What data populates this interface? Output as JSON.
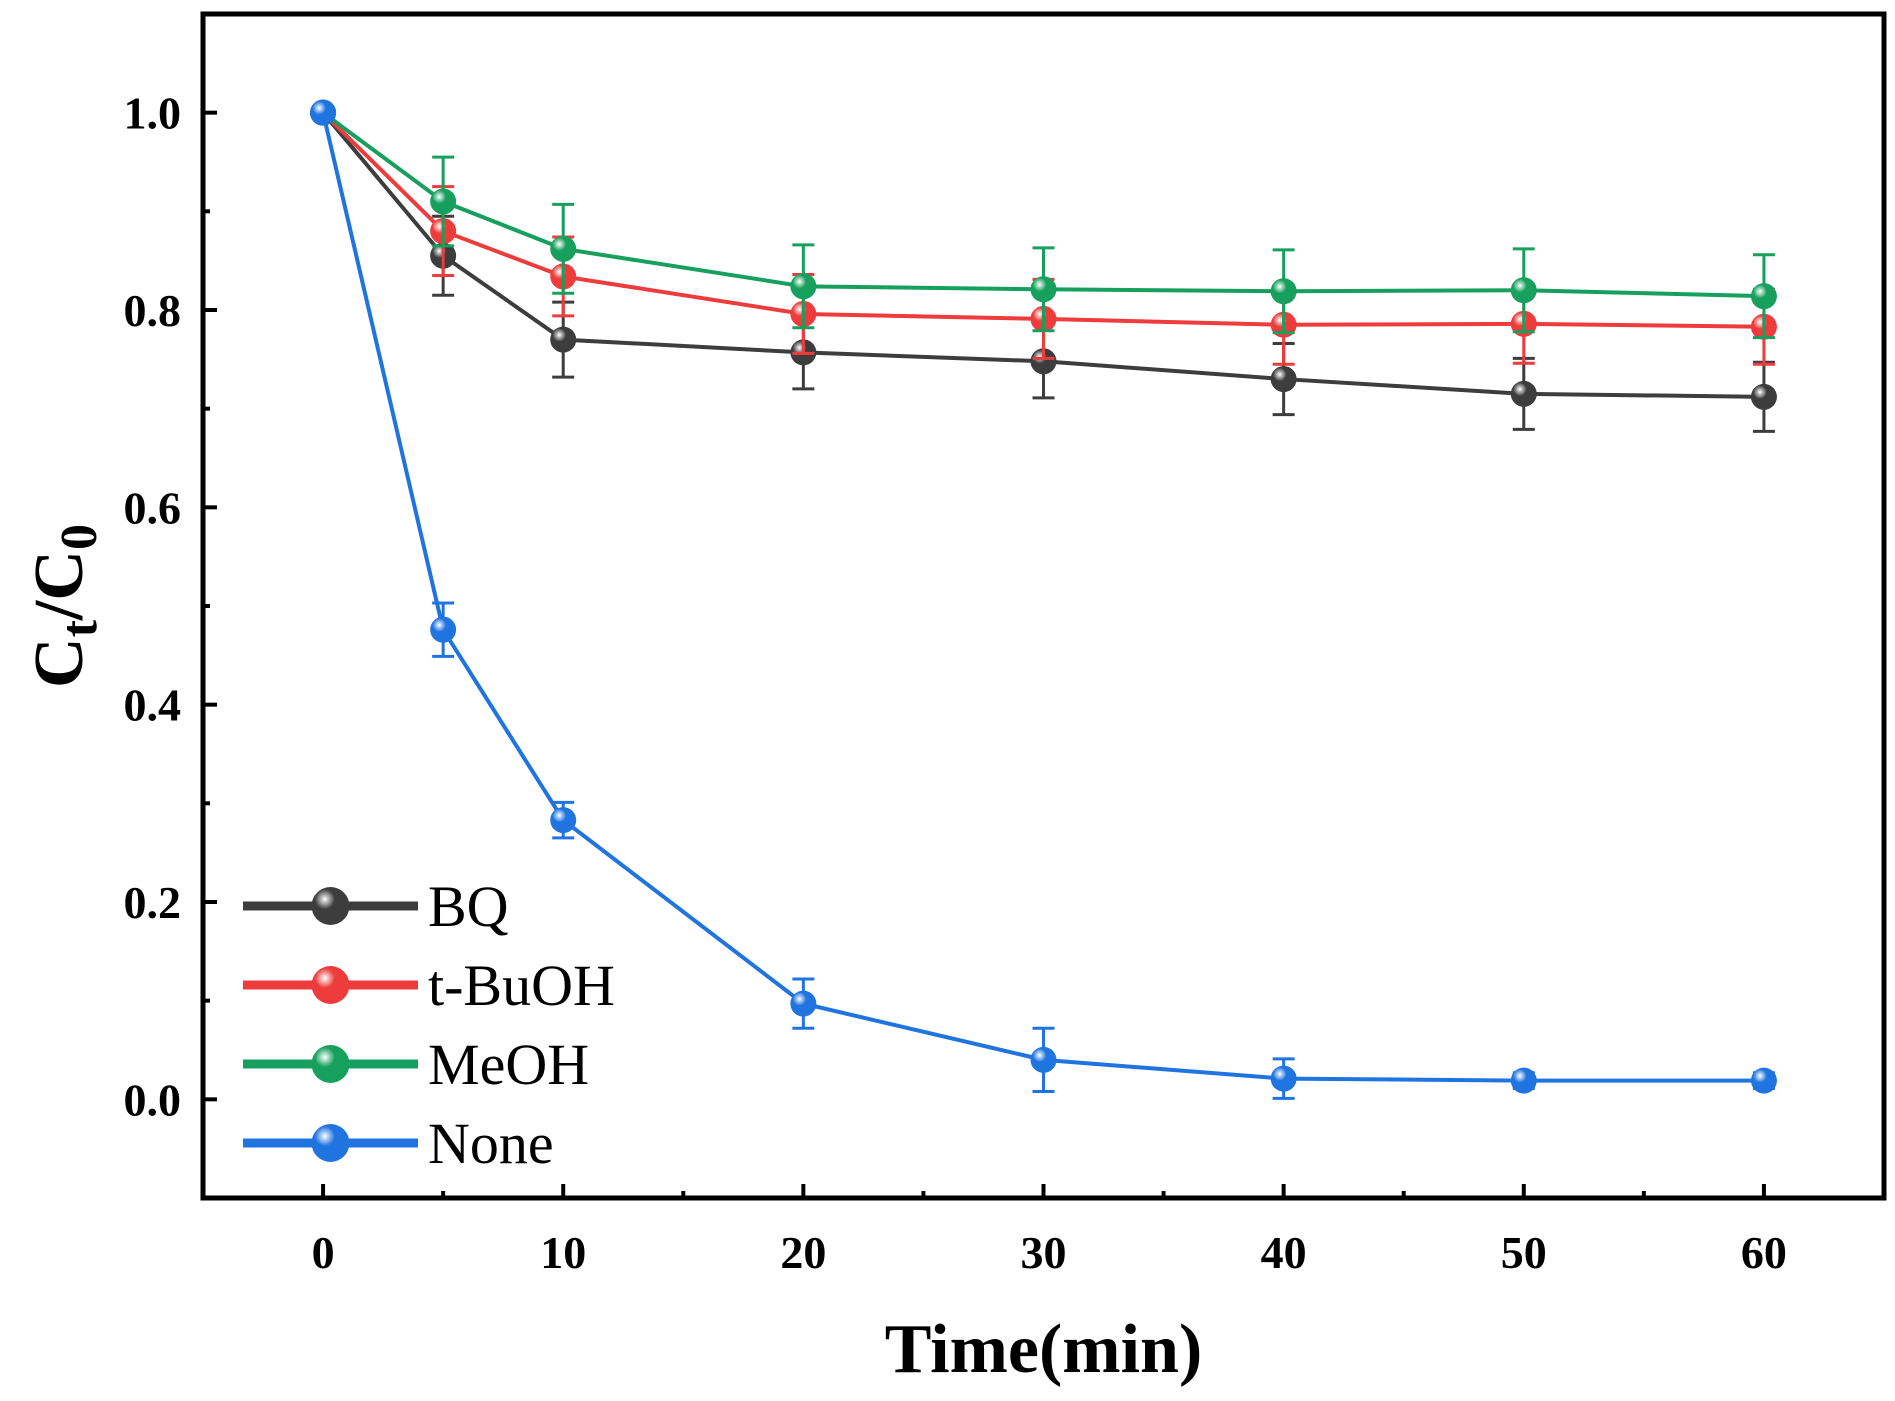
{
  "chart_data": {
    "type": "line",
    "title": "",
    "xlabel": "Time(min)",
    "ylabel": {
      "base": "C",
      "sub1": "t",
      "sep": "/",
      "base2": "C",
      "sub2": "0"
    },
    "xlim": [
      -5,
      65
    ],
    "ylim": [
      -0.1,
      1.1
    ],
    "xticks": [
      0,
      10,
      20,
      30,
      40,
      50,
      60
    ],
    "yticks": [
      0.0,
      0.2,
      0.4,
      0.6,
      0.8,
      1.0
    ],
    "xtick_labels": [
      "0",
      "10",
      "20",
      "30",
      "40",
      "50",
      "60"
    ],
    "ytick_labels": [
      "0.0",
      "0.2",
      "0.4",
      "0.6",
      "0.8",
      "1.0"
    ],
    "x": [
      0,
      5,
      10,
      20,
      30,
      40,
      50,
      60
    ],
    "legend_position": "bottom-left",
    "series": [
      {
        "name": "BQ",
        "color": "#3d3d3d",
        "values": [
          1.0,
          0.855,
          0.77,
          0.757,
          0.748,
          0.73,
          0.715,
          0.712
        ],
        "errors": [
          0,
          0.04,
          0.038,
          0.037,
          0.037,
          0.036,
          0.036,
          0.035
        ]
      },
      {
        "name": "t-BuOH",
        "color": "#ee3b3b",
        "values": [
          1.0,
          0.88,
          0.834,
          0.796,
          0.791,
          0.785,
          0.786,
          0.783
        ],
        "errors": [
          0,
          0.045,
          0.04,
          0.04,
          0.04,
          0.04,
          0.04,
          0.038
        ]
      },
      {
        "name": "MeOH",
        "color": "#17a05d",
        "values": [
          1.0,
          0.91,
          0.862,
          0.824,
          0.821,
          0.819,
          0.82,
          0.814
        ],
        "errors": [
          0,
          0.045,
          0.045,
          0.042,
          0.042,
          0.042,
          0.042,
          0.042
        ]
      },
      {
        "name": "None",
        "color": "#1f74e0",
        "values": [
          1.0,
          0.476,
          0.283,
          0.097,
          0.04,
          0.021,
          0.019,
          0.019
        ],
        "errors": [
          0,
          0.027,
          0.018,
          0.025,
          0.032,
          0.02,
          0.008,
          0.008
        ]
      }
    ]
  }
}
